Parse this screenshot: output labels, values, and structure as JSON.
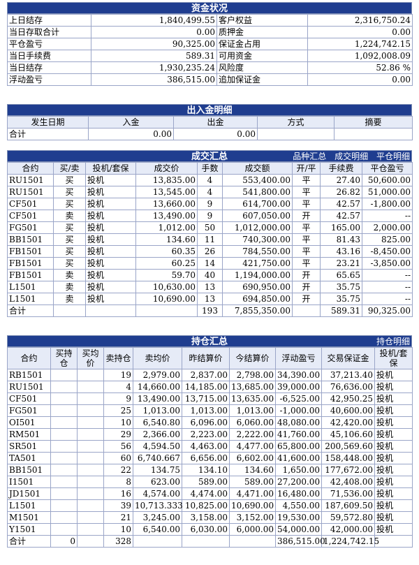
{
  "fund": {
    "title": "资金状况",
    "rows": [
      [
        "上日结存",
        "1,840,499.55",
        "客户权益",
        "2,316,750.24"
      ],
      [
        "当日存取合计",
        "0.00",
        "质押金",
        "0.00"
      ],
      [
        "平仓盈亏",
        "90,325.00",
        "保证金占用",
        "1,224,742.15"
      ],
      [
        "当日手续费",
        "589.31",
        "可用资金",
        "1,092,008.09"
      ],
      [
        "当日结存",
        "1,930,235.24",
        "风险度",
        "52.86 %"
      ],
      [
        "浮动盈亏",
        "386,515.00",
        "追加保证金",
        "0.00"
      ]
    ]
  },
  "deposit": {
    "title": "出入金明细",
    "headers": [
      "发生日期",
      "入金",
      "出金",
      "方式",
      "摘要"
    ],
    "total": [
      "合计",
      "0.00",
      "0.00",
      "",
      ""
    ]
  },
  "trades": {
    "title": "成交汇总",
    "links": [
      "品种汇总",
      "成交明细",
      "平仓明细"
    ],
    "headers": [
      "合约",
      "买/卖",
      "投机/套保",
      "成交价",
      "手数",
      "成交额",
      "开/平",
      "手续费",
      "平仓盈亏"
    ],
    "rows": [
      [
        "RU1501",
        "买",
        "投机",
        "13,835.00",
        "4",
        "553,400.00",
        "平",
        "27.40",
        "50,600.00"
      ],
      [
        "RU1501",
        "买",
        "投机",
        "13,545.00",
        "4",
        "541,800.00",
        "平",
        "26.82",
        "51,000.00"
      ],
      [
        "CF501",
        "买",
        "投机",
        "13,660.00",
        "9",
        "614,700.00",
        "平",
        "42.57",
        "-1,800.00"
      ],
      [
        "CF501",
        "卖",
        "投机",
        "13,490.00",
        "9",
        "607,050.00",
        "开",
        "42.57",
        "--"
      ],
      [
        "FG501",
        "买",
        "投机",
        "1,012.00",
        "50",
        "1,012,000.00",
        "平",
        "165.00",
        "2,000.00"
      ],
      [
        "BB1501",
        "买",
        "投机",
        "134.60",
        "11",
        "740,300.00",
        "平",
        "81.43",
        "825.00"
      ],
      [
        "FB1501",
        "买",
        "投机",
        "60.35",
        "26",
        "784,550.00",
        "平",
        "43.16",
        "-8,450.00"
      ],
      [
        "FB1501",
        "买",
        "投机",
        "60.25",
        "14",
        "421,750.00",
        "平",
        "23.21",
        "-3,850.00"
      ],
      [
        "FB1501",
        "卖",
        "投机",
        "59.70",
        "40",
        "1,194,000.00",
        "开",
        "65.65",
        "--"
      ],
      [
        "L1501",
        "卖",
        "投机",
        "10,630.00",
        "13",
        "690,950.00",
        "开",
        "35.75",
        "--"
      ],
      [
        "L1501",
        "卖",
        "投机",
        "10,690.00",
        "13",
        "694,850.00",
        "开",
        "35.75",
        "--"
      ]
    ],
    "total": [
      "合计",
      "",
      "",
      "",
      "193",
      "7,855,350.00",
      "",
      "589.31",
      "90,325.00"
    ]
  },
  "positions": {
    "title": "持仓汇总",
    "links": [
      "持仓明细"
    ],
    "headers": [
      "合约",
      "买持\n仓",
      "买均\n价",
      "卖持仓",
      "卖均价",
      "昨结算价",
      "今结算价",
      "浮动盈亏",
      "交易保证金",
      "投机/套\n保"
    ],
    "rows": [
      [
        "RB1501",
        "",
        "",
        "19",
        "2,979.00",
        "2,837.00",
        "2,798.00",
        "34,390.00",
        "37,213.40",
        "投机"
      ],
      [
        "RU1501",
        "",
        "",
        "4",
        "14,660.00",
        "14,185.00",
        "13,685.00",
        "39,000.00",
        "76,636.00",
        "投机"
      ],
      [
        "CF501",
        "",
        "",
        "9",
        "13,490.00",
        "13,715.00",
        "13,635.00",
        "-6,525.00",
        "42,950.25",
        "投机"
      ],
      [
        "FG501",
        "",
        "",
        "25",
        "1,013.00",
        "1,013.00",
        "1,013.00",
        "-1,000.00",
        "40,600.00",
        "投机"
      ],
      [
        "OI501",
        "",
        "",
        "10",
        "6,540.80",
        "6,096.00",
        "6,060.00",
        "48,080.00",
        "42,420.00",
        "投机"
      ],
      [
        "RM501",
        "",
        "",
        "29",
        "2,366.00",
        "2,223.00",
        "2,222.00",
        "41,760.00",
        "45,106.60",
        "投机"
      ],
      [
        "SR501",
        "",
        "",
        "56",
        "4,594.50",
        "4,463.00",
        "4,477.00",
        "65,800.00",
        "200,569.60",
        "投机"
      ],
      [
        "TA501",
        "",
        "",
        "60",
        "6,740.667",
        "6,656.00",
        "6,602.00",
        "41,600.00",
        "158,448.00",
        "投机"
      ],
      [
        "BB1501",
        "",
        "",
        "22",
        "134.75",
        "134.10",
        "134.60",
        "1,650.00",
        "177,672.00",
        "投机"
      ],
      [
        "I1501",
        "",
        "",
        "8",
        "623.00",
        "589.00",
        "589.00",
        "27,200.00",
        "42,408.00",
        "投机"
      ],
      [
        "JD1501",
        "",
        "",
        "16",
        "4,574.00",
        "4,474.00",
        "4,471.00",
        "16,480.00",
        "71,536.00",
        "投机"
      ],
      [
        "L1501",
        "",
        "",
        "39",
        "10,713.333",
        "10,825.00",
        "10,690.00",
        "4,550.00",
        "187,609.50",
        "投机"
      ],
      [
        "M1501",
        "",
        "",
        "21",
        "3,245.00",
        "3,158.00",
        "3,152.00",
        "19,530.00",
        "59,572.80",
        "投机"
      ],
      [
        "Y1501",
        "",
        "",
        "10",
        "6,540.00",
        "6,030.00",
        "6,000.00",
        "54,000.00",
        "42,000.00",
        "投机"
      ]
    ],
    "total": [
      "合计",
      "0",
      "",
      "328",
      "",
      "",
      "",
      "386,515.00",
      "1,224,742.15",
      ""
    ]
  }
}
